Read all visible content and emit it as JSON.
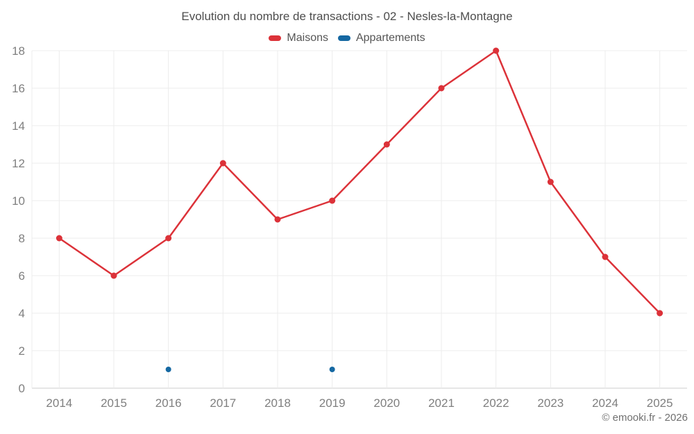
{
  "page": {
    "background": "#ffffff"
  },
  "header": {
    "title": "Evolution du nombre de transactions - 02 - Nesles-la-Montagne"
  },
  "footer": {
    "credit": "© emooki.fr - 2026"
  },
  "chart_data": {
    "type": "line",
    "title": "Evolution du nombre de transactions - 02 - Nesles-la-Montagne",
    "categories": [
      "2014",
      "2015",
      "2016",
      "2017",
      "2018",
      "2019",
      "2020",
      "2021",
      "2022",
      "2023",
      "2024",
      "2025"
    ],
    "series": [
      {
        "name": "Maisons",
        "type": "line",
        "color": "#dc3239",
        "draw_line": true,
        "line_width": 2.5,
        "marker_radius": 4.5,
        "values": [
          8,
          6,
          8,
          12,
          9,
          10,
          13,
          16,
          18,
          11,
          7,
          4
        ]
      },
      {
        "name": "Appartements",
        "type": "scatter",
        "color": "#1568a2",
        "draw_line": false,
        "line_width": 0,
        "marker_radius": 4,
        "values": [
          null,
          null,
          1,
          null,
          null,
          1,
          null,
          null,
          null,
          null,
          null,
          null
        ]
      }
    ],
    "xlabel": "",
    "ylabel": "",
    "ylim": [
      0,
      18
    ],
    "ytick_step": 2,
    "grid": true,
    "legend_position": "top",
    "style": {
      "grid_color": "#ececec",
      "axis_line_color": "#cccccc",
      "tick_color": "#7f7f7f",
      "tick_font_size": 17,
      "title_color": "#4d4d4d",
      "legend_text_color": "#555555",
      "footer_color": "#707070"
    }
  }
}
